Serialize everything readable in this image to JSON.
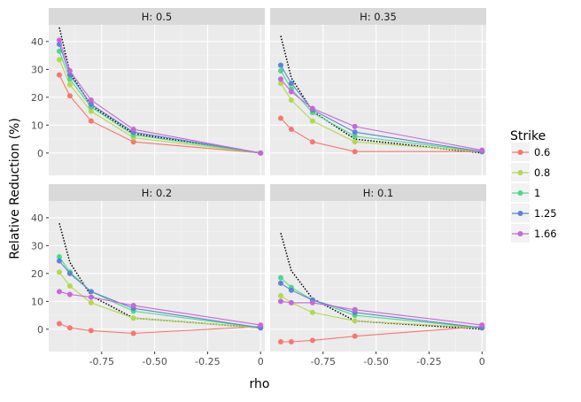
{
  "chart_data": {
    "type": "line",
    "xlabel": "rho",
    "ylabel": "Relative Reduction (%)",
    "xlim": [
      -1.0,
      0.02
    ],
    "ylim": [
      -8,
      46
    ],
    "x_ticks": [
      -0.75,
      -0.5,
      -0.25,
      0
    ],
    "x_tick_labels": [
      "-0.75",
      "-0.50",
      "-0.25",
      "0"
    ],
    "y_ticks": [
      0,
      10,
      20,
      30,
      40
    ],
    "y_tick_labels": [
      "0",
      "10",
      "20",
      "30",
      "40"
    ],
    "legend": {
      "title": "Strike",
      "position": "right",
      "entries": [
        {
          "label": "0.6",
          "color": "#F8766D"
        },
        {
          "label": "0.8",
          "color": "#B4D84C"
        },
        {
          "label": "1",
          "color": "#4CD98A"
        },
        {
          "label": "1.25",
          "color": "#5B84D8"
        },
        {
          "label": "1.66",
          "color": "#C866DC"
        }
      ]
    },
    "panels": [
      {
        "title": "H: 0.5",
        "reference_line": {
          "x": [
            -0.95,
            -0.9,
            -0.8,
            -0.6,
            0
          ],
          "y": [
            45,
            29,
            17,
            7,
            0
          ]
        },
        "series": [
          {
            "name": "0.6",
            "x": [
              -0.95,
              -0.9,
              -0.8,
              -0.6,
              0
            ],
            "y": [
              28,
              20.5,
              11.5,
              4,
              0
            ]
          },
          {
            "name": "0.8",
            "x": [
              -0.95,
              -0.9,
              -0.8,
              -0.6,
              0
            ],
            "y": [
              33.5,
              24.5,
              15,
              5.5,
              0
            ]
          },
          {
            "name": "1",
            "x": [
              -0.95,
              -0.9,
              -0.8,
              -0.6,
              0
            ],
            "y": [
              36.5,
              26.5,
              16.5,
              6.5,
              0
            ]
          },
          {
            "name": "1.25",
            "x": [
              -0.95,
              -0.9,
              -0.8,
              -0.6,
              0
            ],
            "y": [
              39,
              28,
              17.5,
              7.5,
              0
            ]
          },
          {
            "name": "1.66",
            "x": [
              -0.95,
              -0.9,
              -0.8,
              -0.6,
              0
            ],
            "y": [
              40.5,
              29.5,
              19,
              8.5,
              0
            ]
          }
        ]
      },
      {
        "title": "H: 0.35",
        "reference_line": {
          "x": [
            -0.95,
            -0.9,
            -0.8,
            -0.6,
            0
          ],
          "y": [
            42,
            27,
            15,
            5,
            0
          ]
        },
        "series": [
          {
            "name": "0.6",
            "x": [
              -0.95,
              -0.9,
              -0.8,
              -0.6,
              0
            ],
            "y": [
              12.5,
              8.5,
              4,
              0.5,
              0.5
            ]
          },
          {
            "name": "0.8",
            "x": [
              -0.95,
              -0.9,
              -0.8,
              -0.6,
              0
            ],
            "y": [
              25,
              19,
              11.5,
              4,
              0.5
            ]
          },
          {
            "name": "1",
            "x": [
              -0.95,
              -0.9,
              -0.8,
              -0.6,
              0
            ],
            "y": [
              29.5,
              23,
              14.5,
              6,
              0.5
            ]
          },
          {
            "name": "1.25",
            "x": [
              -0.95,
              -0.9,
              -0.8,
              -0.6,
              0
            ],
            "y": [
              31.5,
              25,
              15.5,
              7.5,
              0.5
            ]
          },
          {
            "name": "1.66",
            "x": [
              -0.95,
              -0.9,
              -0.8,
              -0.6,
              0
            ],
            "y": [
              26.5,
              22,
              16,
              9.5,
              1
            ]
          }
        ]
      },
      {
        "title": "H: 0.2",
        "reference_line": {
          "x": [
            -0.95,
            -0.9,
            -0.8,
            -0.6,
            0
          ],
          "y": [
            38,
            24,
            12,
            4,
            0.5
          ]
        },
        "series": [
          {
            "name": "0.6",
            "x": [
              -0.95,
              -0.9,
              -0.8,
              -0.6,
              0
            ],
            "y": [
              2,
              0.5,
              -0.5,
              -1.5,
              1
            ]
          },
          {
            "name": "0.8",
            "x": [
              -0.95,
              -0.9,
              -0.8,
              -0.6,
              0
            ],
            "y": [
              20.5,
              15.5,
              9.5,
              4,
              0.5
            ]
          },
          {
            "name": "1",
            "x": [
              -0.95,
              -0.9,
              -0.8,
              -0.6,
              0
            ],
            "y": [
              26,
              20.5,
              13.5,
              6.5,
              0.5
            ]
          },
          {
            "name": "1.25",
            "x": [
              -0.95,
              -0.9,
              -0.8,
              -0.6,
              0
            ],
            "y": [
              24.5,
              20,
              13.5,
              7.5,
              0.5
            ]
          },
          {
            "name": "1.66",
            "x": [
              -0.95,
              -0.9,
              -0.8,
              -0.6,
              0
            ],
            "y": [
              13.5,
              12.5,
              11.5,
              8.5,
              1.5
            ]
          }
        ]
      },
      {
        "title": "H: 0.1",
        "reference_line": {
          "x": [
            -0.95,
            -0.9,
            -0.8,
            -0.6,
            0
          ],
          "y": [
            34.5,
            21,
            11,
            3,
            0
          ]
        },
        "series": [
          {
            "name": "0.6",
            "x": [
              -0.95,
              -0.9,
              -0.8,
              -0.6,
              0
            ],
            "y": [
              -4.5,
              -4.5,
              -4,
              -2.5,
              1
            ]
          },
          {
            "name": "0.8",
            "x": [
              -0.95,
              -0.9,
              -0.8,
              -0.6,
              0
            ],
            "y": [
              12,
              9.5,
              6,
              3,
              0.5
            ]
          },
          {
            "name": "1",
            "x": [
              -0.95,
              -0.9,
              -0.8,
              -0.6,
              0
            ],
            "y": [
              18.5,
              15,
              10.5,
              5,
              0.5
            ]
          },
          {
            "name": "1.25",
            "x": [
              -0.95,
              -0.9,
              -0.8,
              -0.6,
              0
            ],
            "y": [
              16.5,
              14,
              10.5,
              6,
              0.5
            ]
          },
          {
            "name": "1.66",
            "x": [
              -0.95,
              -0.9,
              -0.8,
              -0.6,
              0
            ],
            "y": [
              10,
              9.5,
              9.5,
              7,
              1.5
            ]
          }
        ]
      }
    ]
  }
}
